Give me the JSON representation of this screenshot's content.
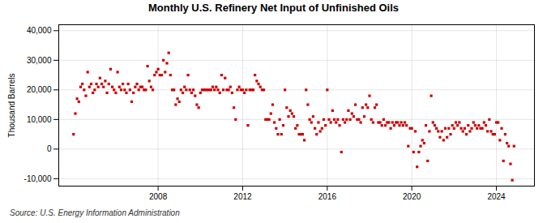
{
  "chart_data": {
    "type": "scatter",
    "title": "Monthly U.S. Refinery Net Input of Unfinished Oils",
    "ylabel": "Thousand Barrels",
    "source": "Source: U.S. Energy Information Administration",
    "color": "#CC0000",
    "marker": "square",
    "grid": true,
    "ylim": [
      -12500,
      42000
    ],
    "yticks": [
      {
        "value": -10000,
        "label": "-10,000"
      },
      0,
      {
        "value": 10000,
        "label": "10,000"
      },
      {
        "value": 20000,
        "label": "20,000"
      },
      {
        "value": 30000,
        "label": "30,000"
      },
      {
        "value": 40000,
        "label": "40,000"
      }
    ],
    "xlim": [
      2003.3,
      2025.8
    ],
    "xticks": [
      2008,
      2012,
      2016,
      2020,
      2024
    ],
    "x": [
      2004.0,
      2004.083,
      2004.167,
      2004.25,
      2004.333,
      2004.417,
      2004.5,
      2004.583,
      2004.667,
      2004.75,
      2004.833,
      2004.917,
      2005.0,
      2005.083,
      2005.167,
      2005.25,
      2005.333,
      2005.417,
      2005.5,
      2005.583,
      2005.667,
      2005.75,
      2005.833,
      2005.917,
      2006.0,
      2006.083,
      2006.167,
      2006.25,
      2006.333,
      2006.417,
      2006.5,
      2006.583,
      2006.667,
      2006.75,
      2006.833,
      2006.917,
      2007.0,
      2007.083,
      2007.167,
      2007.25,
      2007.333,
      2007.417,
      2007.5,
      2007.583,
      2007.667,
      2007.75,
      2007.833,
      2007.917,
      2008.0,
      2008.083,
      2008.167,
      2008.25,
      2008.333,
      2008.417,
      2008.5,
      2008.583,
      2008.667,
      2008.75,
      2008.833,
      2008.917,
      2009.0,
      2009.083,
      2009.167,
      2009.25,
      2009.333,
      2009.417,
      2009.5,
      2009.583,
      2009.667,
      2009.75,
      2009.833,
      2009.917,
      2010.0,
      2010.083,
      2010.167,
      2010.25,
      2010.333,
      2010.417,
      2010.5,
      2010.583,
      2010.667,
      2010.75,
      2010.833,
      2010.917,
      2011.0,
      2011.083,
      2011.167,
      2011.25,
      2011.333,
      2011.417,
      2011.5,
      2011.583,
      2011.667,
      2011.75,
      2011.833,
      2011.917,
      2012.0,
      2012.083,
      2012.167,
      2012.25,
      2012.333,
      2012.417,
      2012.5,
      2012.583,
      2012.667,
      2012.75,
      2012.833,
      2012.917,
      2013.0,
      2013.083,
      2013.167,
      2013.25,
      2013.333,
      2013.417,
      2013.5,
      2013.583,
      2013.667,
      2013.75,
      2013.833,
      2013.917,
      2014.0,
      2014.083,
      2014.167,
      2014.25,
      2014.333,
      2014.417,
      2014.5,
      2014.583,
      2014.667,
      2014.75,
      2014.833,
      2014.917,
      2015.0,
      2015.083,
      2015.167,
      2015.25,
      2015.333,
      2015.417,
      2015.5,
      2015.583,
      2015.667,
      2015.75,
      2015.833,
      2015.917,
      2016.0,
      2016.083,
      2016.167,
      2016.25,
      2016.333,
      2016.417,
      2016.5,
      2016.583,
      2016.667,
      2016.75,
      2016.833,
      2016.917,
      2017.0,
      2017.083,
      2017.167,
      2017.25,
      2017.333,
      2017.417,
      2017.5,
      2017.583,
      2017.667,
      2017.75,
      2017.833,
      2017.917,
      2018.0,
      2018.083,
      2018.167,
      2018.25,
      2018.333,
      2018.417,
      2018.5,
      2018.583,
      2018.667,
      2018.75,
      2018.833,
      2018.917,
      2019.0,
      2019.083,
      2019.167,
      2019.25,
      2019.333,
      2019.417,
      2019.5,
      2019.583,
      2019.667,
      2019.75,
      2019.833,
      2019.917,
      2020.0,
      2020.083,
      2020.167,
      2020.25,
      2020.333,
      2020.417,
      2020.5,
      2020.583,
      2020.667,
      2020.75,
      2020.833,
      2020.917,
      2021.0,
      2021.083,
      2021.167,
      2021.25,
      2021.333,
      2021.417,
      2021.5,
      2021.583,
      2021.667,
      2021.75,
      2021.833,
      2021.917,
      2022.0,
      2022.083,
      2022.167,
      2022.25,
      2022.333,
      2022.417,
      2022.5,
      2022.583,
      2022.667,
      2022.75,
      2022.833,
      2022.917,
      2023.0,
      2023.083,
      2023.167,
      2023.25,
      2023.333,
      2023.417,
      2023.5,
      2023.583,
      2023.667,
      2023.75,
      2023.833,
      2023.917,
      2024.0,
      2024.083,
      2024.167,
      2024.25,
      2024.333,
      2024.417,
      2024.5,
      2024.583,
      2024.667,
      2024.75,
      2024.833
    ],
    "values": [
      5000,
      12000,
      17000,
      16000,
      21000,
      22000,
      20000,
      18000,
      26000,
      21000,
      22000,
      19000,
      20000,
      22000,
      21000,
      24000,
      22000,
      21000,
      23000,
      19000,
      22000,
      27000,
      21000,
      20000,
      19000,
      26000,
      21000,
      20000,
      22000,
      20000,
      19000,
      22000,
      20000,
      16000,
      19000,
      21000,
      22000,
      20000,
      21000,
      21000,
      20000,
      20000,
      28000,
      23000,
      21000,
      20000,
      25000,
      26000,
      27000,
      25000,
      25000,
      30000,
      26000,
      29000,
      32500,
      25000,
      20000,
      20000,
      15000,
      17000,
      16000,
      20000,
      19000,
      21000,
      20000,
      25000,
      20000,
      19000,
      20000,
      18000,
      15000,
      14000,
      19000,
      20000,
      20000,
      20000,
      20000,
      20000,
      20000,
      21000,
      20000,
      21000,
      20000,
      19000,
      25000,
      20000,
      24000,
      20000,
      20000,
      21000,
      19000,
      14000,
      10000,
      20000,
      21000,
      20000,
      20000,
      19000,
      20000,
      8000,
      20000,
      20000,
      20000,
      25000,
      23000,
      22000,
      21000,
      20000,
      20000,
      10000,
      10000,
      10000,
      12000,
      15000,
      9000,
      7000,
      5000,
      10000,
      5000,
      8000,
      20000,
      14000,
      11000,
      13000,
      12000,
      11000,
      7000,
      8000,
      5000,
      5000,
      5000,
      3000,
      20000,
      15000,
      10000,
      9000,
      11000,
      7000,
      5000,
      9000,
      6000,
      7000,
      10000,
      8000,
      20000,
      10000,
      9000,
      13000,
      10000,
      9000,
      10000,
      8000,
      -1000,
      10000,
      9000,
      10000,
      13000,
      10000,
      12000,
      11000,
      15000,
      10000,
      10000,
      9000,
      14000,
      11000,
      15000,
      14000,
      18000,
      10000,
      9000,
      14000,
      15000,
      9000,
      9000,
      8000,
      10000,
      8000,
      9000,
      9000,
      7000,
      9000,
      8000,
      9000,
      9000,
      8000,
      9000,
      8000,
      9000,
      8000,
      1000,
      7000,
      7000,
      -1000,
      6000,
      -6000,
      -1000,
      1000,
      3000,
      2000,
      8000,
      -4000,
      6000,
      18000,
      9000,
      8000,
      7000,
      6000,
      4000,
      6000,
      3000,
      7000,
      4000,
      7000,
      5000,
      8000,
      7000,
      9000,
      8000,
      9000,
      7000,
      6000,
      7000,
      5000,
      8000,
      6000,
      7000,
      9000,
      8000,
      7000,
      8000,
      7000,
      7000,
      9000,
      8000,
      6000,
      10000,
      6000,
      5000,
      5000,
      9000,
      9000,
      3000,
      7000,
      -4000,
      5000,
      2000,
      1000,
      -5000,
      -10500,
      1000
    ]
  }
}
